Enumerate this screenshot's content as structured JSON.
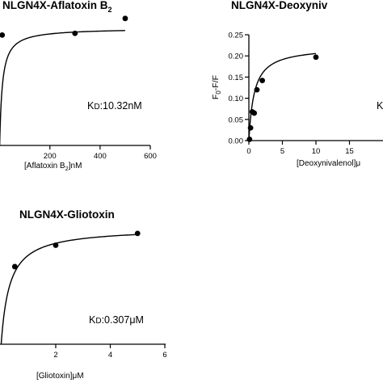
{
  "chart_data": [
    {
      "type": "scatter",
      "title": "NLGN4X-Aflatoxin B",
      "title_sub": "2",
      "xlabel": "[Aflatoxin B",
      "xlabel_sub": "2",
      "xlabel_suffix": "]nM",
      "ylabel": "",
      "annotation": "KD:10.32nM",
      "annotation_prefix": "K",
      "annotation_sub": "D",
      "annotation_value": ":10.32nM",
      "kd": 10.32,
      "bmax": 0.205,
      "xlim": [
        -20,
        600
      ],
      "ylim": [
        0,
        0.25
      ],
      "xticks": [
        200,
        400,
        600
      ],
      "xtick_labels": [
        "200",
        "400",
        "600"
      ],
      "x": [
        10,
        300,
        500
      ],
      "y": [
        0.193,
        0.196,
        0.222
      ],
      "grid": false,
      "curve": "one-site binding fit"
    },
    {
      "type": "scatter",
      "title": "NLGN4X-Deoxyniv",
      "xlabel": "[Deoxynivalenol]",
      "xlabel_suffix": "μ",
      "ylabel": "F",
      "ylabel_sub": "0",
      "ylabel_suffix": "-F/F",
      "annotation": "K",
      "kd": 0.8,
      "bmax": 0.222,
      "xlim": [
        0,
        20
      ],
      "ylim": [
        0,
        0.25
      ],
      "xticks": [
        0,
        5,
        10,
        15
      ],
      "xtick_labels": [
        "0",
        "5",
        "10",
        "15"
      ],
      "yticks": [
        0.0,
        0.05,
        0.1,
        0.15,
        0.2,
        0.25
      ],
      "ytick_labels": [
        "0.00",
        "0.05",
        "0.10",
        "0.15",
        "0.20",
        "0.25"
      ],
      "x": [
        0.1,
        0.25,
        0.5,
        0.8,
        1.2,
        2.0,
        10.0
      ],
      "y": [
        0.003,
        0.03,
        0.068,
        0.065,
        0.12,
        0.142,
        0.197
      ],
      "grid": false,
      "curve": "one-site binding fit"
    },
    {
      "type": "scatter",
      "title": "NLGN4X-Gliotoxin",
      "xlabel": "[Gliotoxin]μM",
      "ylabel": "",
      "annotation": "KD:0.307μM",
      "annotation_prefix": "K",
      "annotation_sub": "D",
      "annotation_value": ":0.307μM",
      "kd": 0.307,
      "bmax": 0.207,
      "xlim": [
        -0.2,
        6
      ],
      "ylim": [
        0,
        0.25
      ],
      "xticks": [
        2,
        4,
        6
      ],
      "xtick_labels": [
        "2",
        "4",
        "6"
      ],
      "x": [
        0.5,
        2.0,
        5.0
      ],
      "y": [
        0.138,
        0.176,
        0.197
      ],
      "grid": false,
      "curve": "one-site binding fit"
    }
  ]
}
